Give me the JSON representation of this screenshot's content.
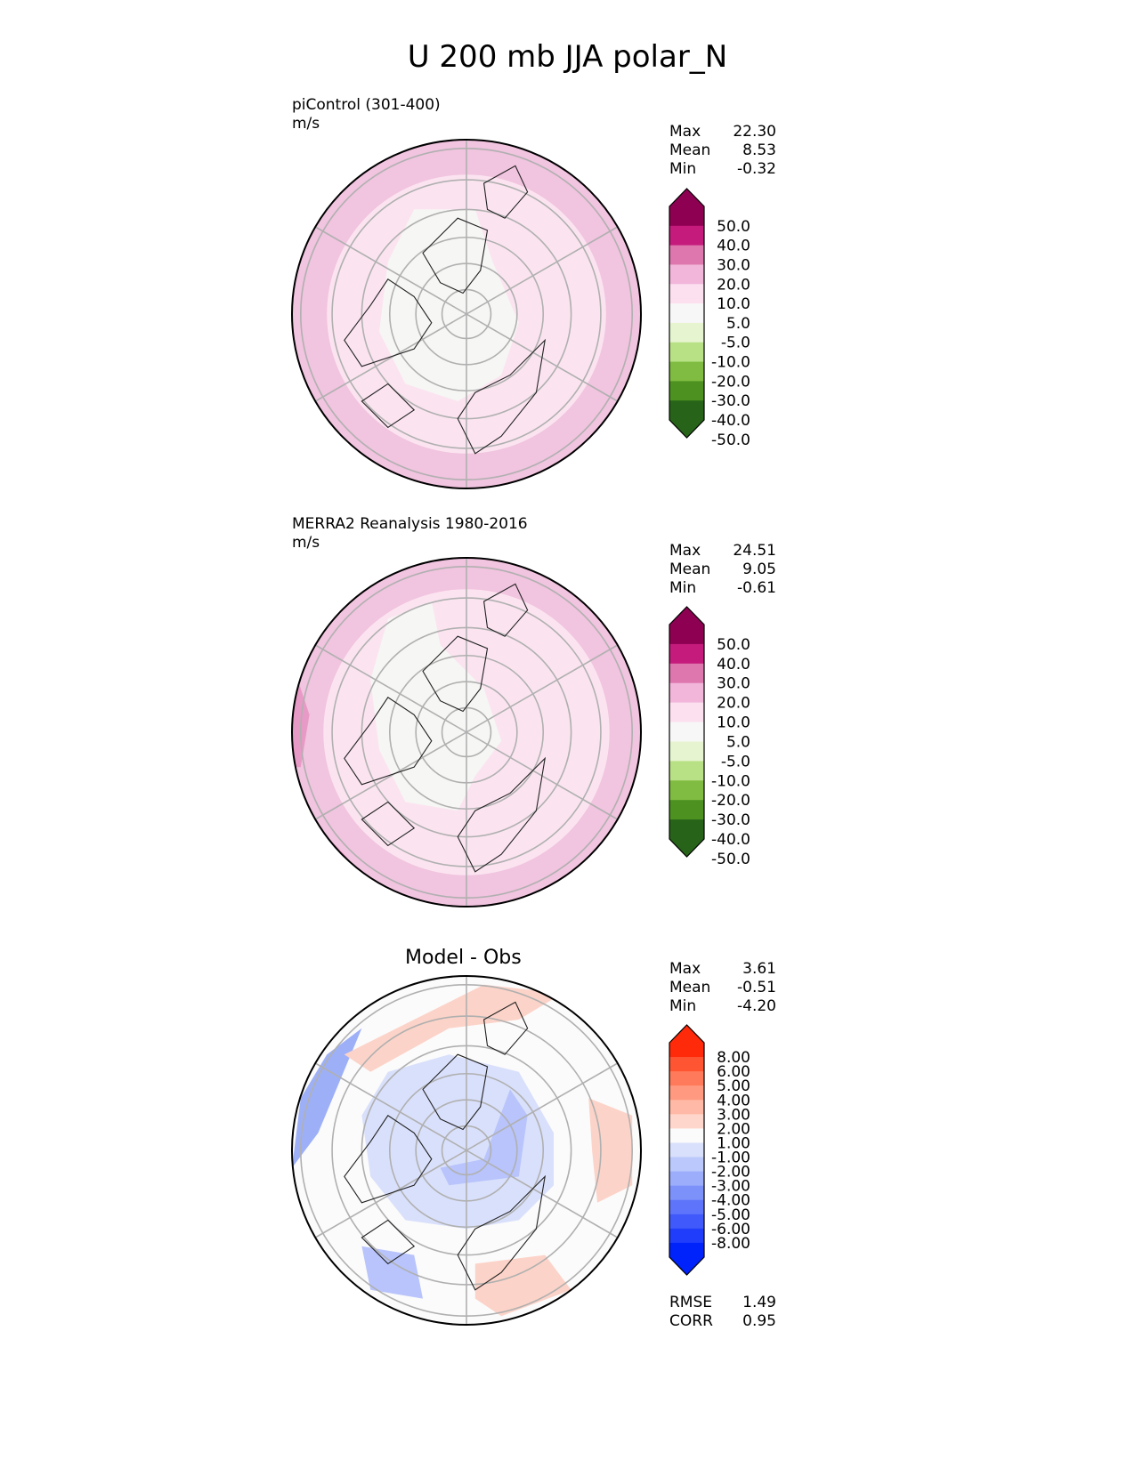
{
  "figure": {
    "title": "U 200 mb JJA polar_N"
  },
  "panels": [
    {
      "label": "piControl (301-400)",
      "units": "m/s",
      "stats": [
        {
          "name": "Max",
          "value": "22.30"
        },
        {
          "name": "Mean",
          "value": "8.53"
        },
        {
          "name": "Min",
          "value": "-0.32"
        }
      ]
    },
    {
      "label": "MERRA2 Reanalysis 1980-2016",
      "units": "m/s",
      "stats": [
        {
          "name": "Max",
          "value": "24.51"
        },
        {
          "name": "Mean",
          "value": "9.05"
        },
        {
          "name": "Min",
          "value": "-0.61"
        }
      ]
    },
    {
      "label": "Model - Obs",
      "units": "",
      "stats": [
        {
          "name": "Max",
          "value": "3.61"
        },
        {
          "name": "Mean",
          "value": "-0.51"
        },
        {
          "name": "Min",
          "value": "-4.20"
        }
      ],
      "metrics": [
        {
          "name": "RMSE",
          "value": "1.49"
        },
        {
          "name": "CORR",
          "value": "0.95"
        }
      ]
    }
  ],
  "chart_data": [
    {
      "type": "heatmap",
      "projection": "north polar stereographic",
      "title": "piControl (301-400)",
      "units": "m/s",
      "colorbar": {
        "ticks": [
          "50.0",
          "40.0",
          "30.0",
          "20.0",
          "10.0",
          "5.0",
          "-5.0",
          "-10.0",
          "-20.0",
          "-30.0",
          "-40.0",
          "-50.0"
        ],
        "colors": [
          "#8e0152",
          "#c51b7d",
          "#de77ae",
          "#f1b6da",
          "#fde0ef",
          "#f7f7f7",
          "#e6f5d0",
          "#b8e186",
          "#7fbc41",
          "#4d9221",
          "#276419"
        ],
        "extend": "both"
      },
      "fields": [
        {
          "level": "10 to 20",
          "color": "#f1c4df"
        },
        {
          "level": "5 to 10",
          "color": "#fbe4f0"
        },
        {
          "level": "-5 to 5",
          "color": "#f6f6f4"
        }
      ],
      "stats": {
        "max": 22.3,
        "mean": 8.53,
        "min": -0.32
      }
    },
    {
      "type": "heatmap",
      "projection": "north polar stereographic",
      "title": "MERRA2 Reanalysis 1980-2016",
      "units": "m/s",
      "colorbar": {
        "ticks": [
          "50.0",
          "40.0",
          "30.0",
          "20.0",
          "10.0",
          "5.0",
          "-5.0",
          "-10.0",
          "-20.0",
          "-30.0",
          "-40.0",
          "-50.0"
        ],
        "colors": [
          "#8e0152",
          "#c51b7d",
          "#de77ae",
          "#f1b6da",
          "#fde0ef",
          "#f7f7f7",
          "#e6f5d0",
          "#b8e186",
          "#7fbc41",
          "#4d9221",
          "#276419"
        ],
        "extend": "both"
      },
      "fields": [
        {
          "level": "20 to 30",
          "color": "#e89ac6"
        },
        {
          "level": "10 to 20",
          "color": "#f1c4df"
        },
        {
          "level": "5 to 10",
          "color": "#fbe4f0"
        },
        {
          "level": "-5 to 5",
          "color": "#f6f6f4"
        }
      ],
      "stats": {
        "max": 24.51,
        "mean": 9.05,
        "min": -0.61
      }
    },
    {
      "type": "heatmap",
      "projection": "north polar stereographic",
      "title": "Model - Obs",
      "colorbar": {
        "ticks": [
          "8.00",
          "6.00",
          "5.00",
          "4.00",
          "3.00",
          "2.00",
          "1.00",
          "-1.00",
          "-2.00",
          "-3.00",
          "-4.00",
          "-5.00",
          "-6.00",
          "-8.00"
        ],
        "colors": [
          "#ff2a0a",
          "#ff5533",
          "#ff7a5a",
          "#ff9a80",
          "#ffb9a6",
          "#ffd6cb",
          "#fbfbfb",
          "#d9e0fb",
          "#bac8fb",
          "#9cadfb",
          "#7d91fb",
          "#5e75fb",
          "#3f59fb",
          "#1f3dfb",
          "#0022fb"
        ],
        "extend": "both"
      },
      "fields": [
        {
          "level": "1 to 3",
          "color": "#fcd3c8"
        },
        {
          "level": "-1 to 1",
          "color": "#fbfbfb"
        },
        {
          "level": "-2 to -1",
          "color": "#d9e0fb"
        },
        {
          "level": "-3 to -2",
          "color": "#b8c4fb"
        },
        {
          "level": "-4 to -3",
          "color": "#9db0f7"
        }
      ],
      "stats": {
        "max": 3.61,
        "mean": -0.51,
        "min": -4.2,
        "rmse": 1.49,
        "corr": 0.95
      }
    }
  ]
}
